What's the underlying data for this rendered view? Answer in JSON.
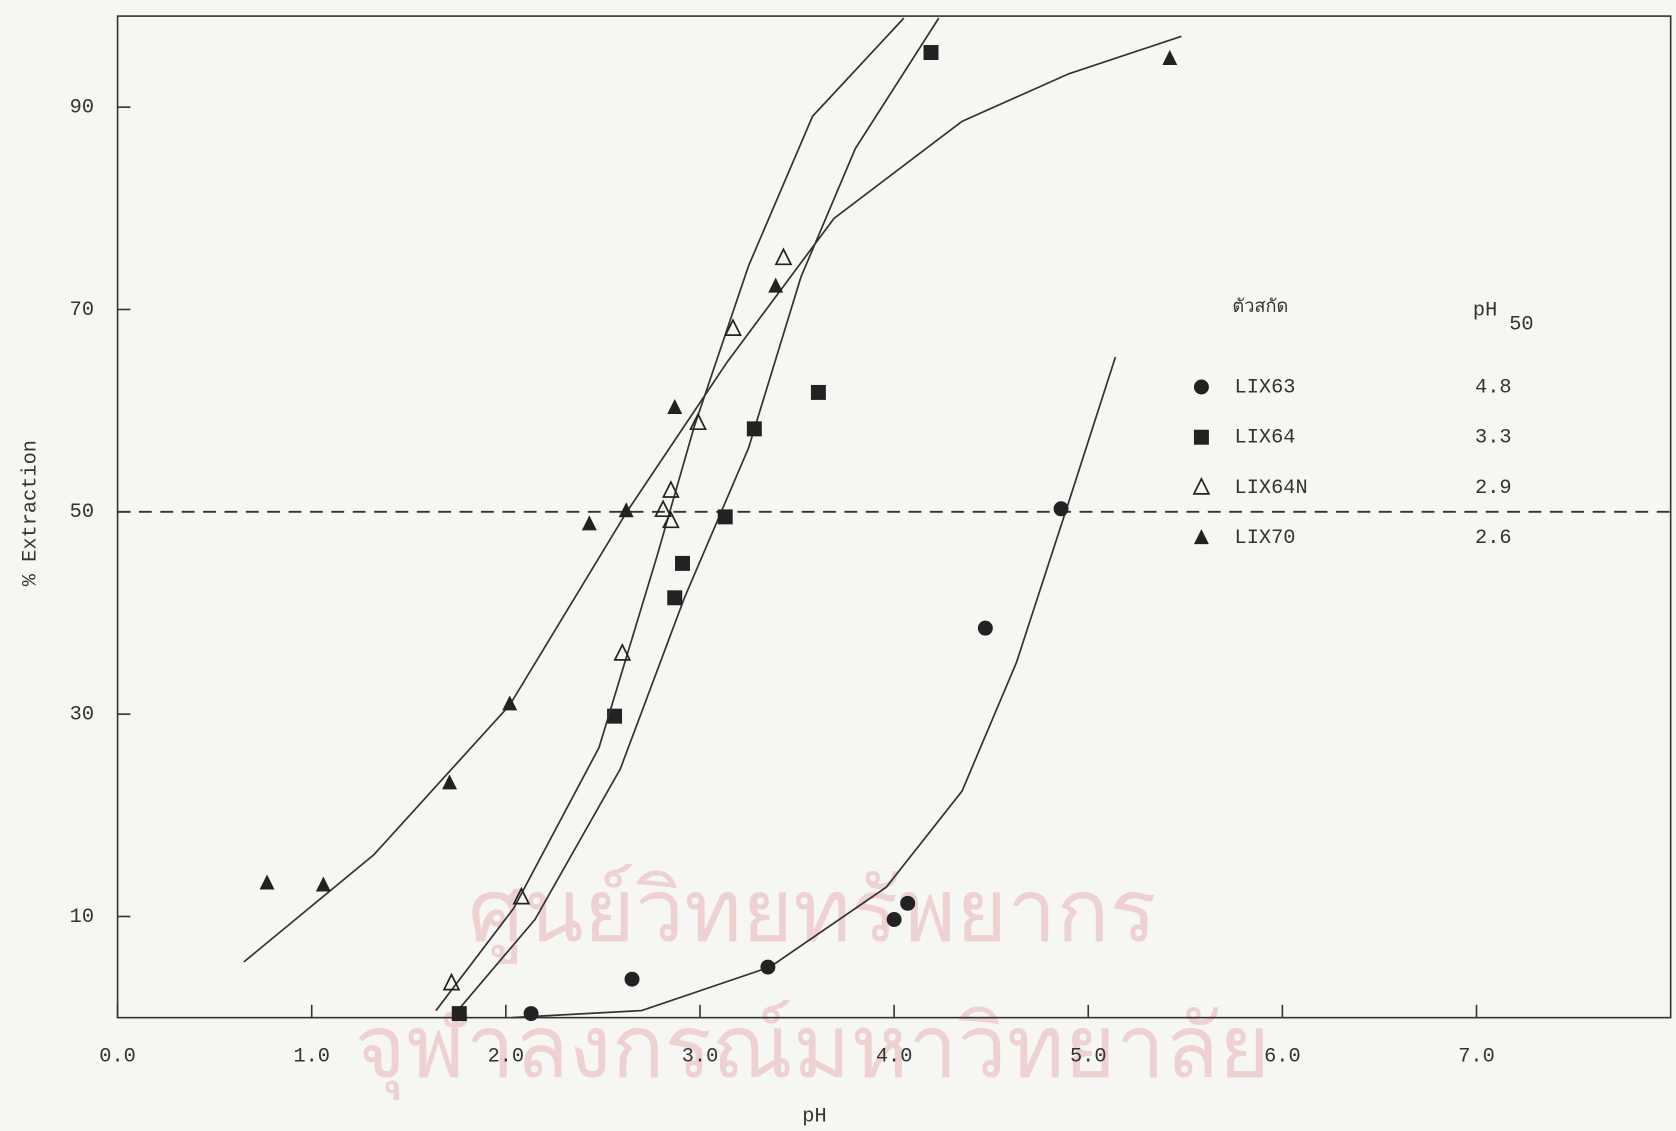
{
  "chart_data": {
    "type": "scatter",
    "xlabel": "pH",
    "ylabel": "% Extraction",
    "xlim": [
      0,
      8
    ],
    "ylim": [
      0,
      99
    ],
    "xticks": [
      {
        "value": 0,
        "label": "0.0"
      },
      {
        "value": 1,
        "label": "1.0"
      },
      {
        "value": 2,
        "label": "2.0"
      },
      {
        "value": 3,
        "label": "3.0"
      },
      {
        "value": 4,
        "label": "4.0"
      },
      {
        "value": 5,
        "label": "5.0"
      },
      {
        "value": 6,
        "label": "6.0"
      },
      {
        "value": 7,
        "label": "7.0"
      }
    ],
    "yticks": [
      10,
      30,
      50,
      70,
      90
    ],
    "reference_line": 50,
    "legend_title": "ตัวสกัด",
    "legend_value_header": {
      "text": "pH",
      "subscript": "50"
    },
    "watermark": [
      "ศูนย์วิทยทรัพยากร",
      "จุฬาลงกรณ์มหาวิทยาลัย"
    ],
    "series": [
      {
        "name": "LIX63",
        "ph50": 4.8,
        "marker": "circle",
        "color": "#222222",
        "x": [
          2.13,
          2.65,
          3.35,
          4.0,
          4.07,
          4.47,
          4.86
        ],
        "values": [
          0.4,
          3.8,
          5.0,
          9.7,
          11.3,
          38.5,
          50.3
        ],
        "curve": {
          "x": [
            2.03,
            2.7,
            3.36,
            3.96,
            4.35,
            4.63,
            4.9,
            5.14
          ],
          "y": [
            0,
            0.7,
            5.0,
            12.9,
            22.4,
            35.1,
            51.0,
            65.3
          ]
        }
      },
      {
        "name": "LIX64",
        "ph50": 3.3,
        "marker": "square",
        "color": "#222222",
        "x": [
          1.76,
          2.56,
          2.87,
          2.91,
          3.13,
          3.28,
          3.61,
          4.19
        ],
        "values": [
          0.4,
          29.8,
          41.5,
          44.9,
          49.5,
          58.2,
          61.8,
          95.4
        ],
        "curve": {
          "x": [
            1.73,
            2.15,
            2.59,
            2.92,
            3.25,
            3.52,
            3.8,
            4.23
          ],
          "y": [
            0.2,
            9.7,
            24.6,
            41.5,
            56.3,
            73.2,
            85.9,
            98.8
          ]
        }
      },
      {
        "name": "LIX64N",
        "ph50": 2.9,
        "marker": "triangle-open",
        "color": "#222222",
        "x": [
          1.72,
          2.08,
          2.6,
          2.81,
          2.85,
          2.85,
          2.99,
          3.17,
          3.43
        ],
        "values": [
          3.4,
          11.9,
          36.0,
          50.2,
          52.1,
          49.1,
          58.8,
          68.1,
          75.1
        ],
        "curve": {
          "x": [
            1.64,
            2.04,
            2.48,
            2.78,
            2.97,
            3.25,
            3.58,
            4.05
          ],
          "y": [
            0.7,
            10.8,
            26.7,
            45.7,
            58.4,
            74.3,
            89.1,
            98.8
          ]
        }
      },
      {
        "name": "LIX70",
        "ph50": 2.6,
        "marker": "triangle",
        "color": "#222222",
        "x": [
          0.77,
          1.06,
          1.71,
          2.02,
          2.43,
          2.62,
          2.87,
          3.39,
          5.42
        ],
        "values": [
          13.3,
          13.1,
          23.2,
          31.0,
          48.8,
          50.1,
          60.3,
          72.3,
          94.8
        ],
        "curve": {
          "x": [
            0.65,
            1.32,
            2.02,
            2.62,
            3.14,
            3.69,
            4.35,
            4.9,
            5.48
          ],
          "y": [
            5.5,
            16.1,
            30.9,
            49.9,
            64.8,
            79.0,
            88.6,
            93.3,
            97.0
          ]
        }
      }
    ]
  }
}
